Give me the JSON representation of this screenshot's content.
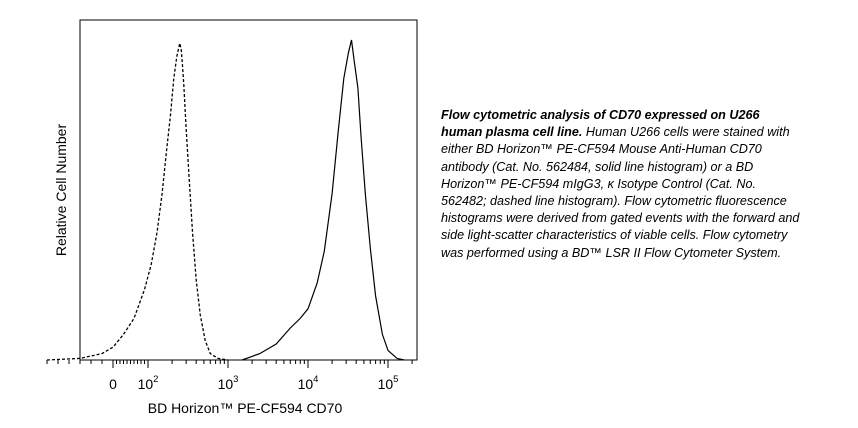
{
  "caption": {
    "title": "Flow cytometric analysis of CD70 expressed on U266 human plasma cell line.",
    "body": " Human U266 cells were stained with either BD Horizon™ PE-CF594 Mouse Anti-Human CD70 antibody (Cat. No. 562484, solid line histogram) or a BD Horizon™ PE-CF594 mIgG3, κ Isotype Control (Cat. No. 562482; dashed line histogram). Flow cytometric fluorescence histograms were derived from gated events with the forward and side light-scatter characteristics of viable cells. Flow cytometry was performed using a BD™ LSR II Flow Cytometer System."
  },
  "chart_data": {
    "type": "area",
    "xlabel": "BD Horizon™ PE-CF594 CD70",
    "ylabel": "Relative Cell Number",
    "x_scale": "biexponential (log above 10^2)",
    "xlim": [
      -300,
      200000
    ],
    "ylim": [
      0,
      1
    ],
    "grid": false,
    "legend": "none",
    "x_ticks": [
      {
        "value": 0,
        "base": "0",
        "exp": ""
      },
      {
        "value": 100,
        "base": "10",
        "exp": "2"
      },
      {
        "value": 1000,
        "base": "10",
        "exp": "3"
      },
      {
        "value": 10000,
        "base": "10",
        "exp": "4"
      },
      {
        "value": 100000,
        "base": "10",
        "exp": "5"
      }
    ],
    "series": [
      {
        "style": "dashed",
        "x": [
          -300,
          -150,
          -50,
          0,
          30,
          60,
          90,
          110,
          130,
          150,
          170,
          190,
          210,
          230,
          250,
          260,
          270,
          280,
          300,
          330,
          360,
          400,
          450,
          520,
          600,
          750,
          1000
        ],
        "y": [
          0,
          0.005,
          0.02,
          0.04,
          0.08,
          0.13,
          0.22,
          0.3,
          0.4,
          0.52,
          0.65,
          0.76,
          0.88,
          0.95,
          0.99,
          0.97,
          0.92,
          0.86,
          0.72,
          0.55,
          0.4,
          0.25,
          0.14,
          0.06,
          0.02,
          0.005,
          0
        ]
      },
      {
        "style": "solid",
        "x": [
          1500,
          2500,
          4000,
          6000,
          8000,
          10000,
          13000,
          16000,
          20000,
          24000,
          28000,
          32000,
          35000,
          38000,
          42000,
          46000,
          52000,
          60000,
          70000,
          85000,
          100000,
          130000,
          160000
        ],
        "y": [
          0,
          0.02,
          0.05,
          0.1,
          0.13,
          0.16,
          0.24,
          0.34,
          0.52,
          0.72,
          0.88,
          0.96,
          1.0,
          0.93,
          0.85,
          0.7,
          0.52,
          0.35,
          0.2,
          0.08,
          0.03,
          0.005,
          0
        ]
      }
    ]
  }
}
